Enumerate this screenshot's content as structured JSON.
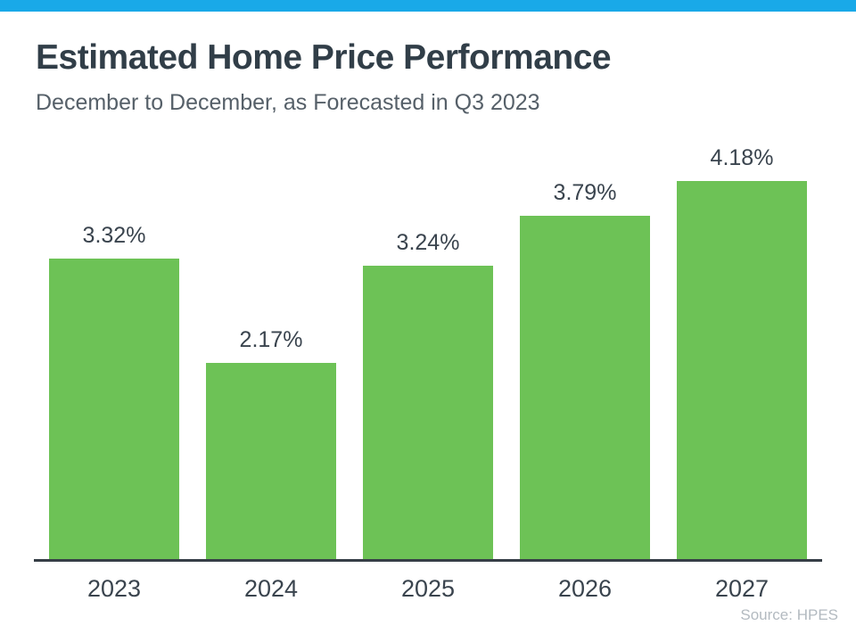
{
  "header": {
    "title": "Estimated Home Price Performance",
    "subtitle": "December to December, as Forecasted in Q3 2023"
  },
  "footer": {
    "source": "Source: HPES"
  },
  "colors": {
    "top_bar": "#19a9e8",
    "bar_green": "#6dc256",
    "axis": "#363e46",
    "title_text": "#313e48",
    "subtitle_text": "#566069",
    "value_text": "#3a444e",
    "source_text": "#b3bac0"
  },
  "chart_data": {
    "type": "bar",
    "title": "Estimated Home Price Performance",
    "subtitle": "December to December, as Forecasted in Q3 2023",
    "categories": [
      "2023",
      "2024",
      "2025",
      "2026",
      "2027"
    ],
    "values": [
      3.32,
      2.17,
      3.24,
      3.79,
      4.18
    ],
    "value_labels": [
      "3.32%",
      "2.17%",
      "3.24%",
      "3.79%",
      "4.18%"
    ],
    "xlabel": "",
    "ylabel": "",
    "ylim": [
      0,
      4.6
    ],
    "grid": false,
    "legend": false,
    "bar_color": "#6dc256",
    "annotation": "Source: HPES"
  }
}
